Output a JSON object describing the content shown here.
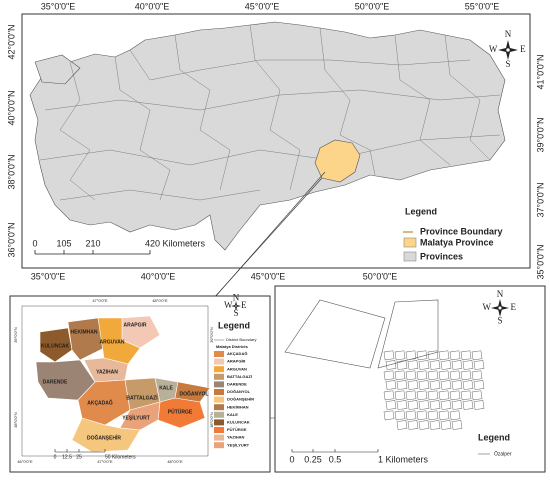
{
  "overview_map": {
    "top_lon": [
      "35°0'0\"E",
      "40°0'0\"E",
      "45°0'0\"E",
      "50°0'0\"E",
      "55°0'0\"E"
    ],
    "bottom_lon": [
      "35°0'0\"E",
      "40°0'0\"E",
      "45°0'0\"E",
      "50°0'0\"E"
    ],
    "left_lat": [
      "42°0'0\"N",
      "40°0'0\"N",
      "38°0'0\"N",
      "36°0'0\"N"
    ],
    "right_lat": [
      "41°0'0\"N",
      "39°0'0\"N",
      "37°0'0\"N",
      "35°0'0\"N"
    ],
    "scale": [
      "0",
      "105",
      "210",
      "420 Kilometers"
    ],
    "compass": [
      "N",
      "E",
      "S",
      "W"
    ],
    "legend": {
      "title": "Legend",
      "items": [
        "Province Boundary",
        "Malatya Province",
        "Provinces"
      ]
    }
  },
  "district_map": {
    "top_lon": [
      "47°0'0\"E",
      "48°0'0\"E"
    ],
    "bottom_lon": [
      "46°0'0\"E",
      "47°0'0\"E",
      "48°0'0\"E"
    ],
    "left_lat": [
      "39°0'0\"N",
      "38°0'0\"N"
    ],
    "right_lat": [
      "39°0'0\"N",
      "38°0'0\"N"
    ],
    "labels": [
      "ARAPGIR",
      "KULUNCAK",
      "HEKIMHAN",
      "ARGUVAN",
      "YAZIHAN",
      "DARENDE",
      "AKÇADAĞ",
      "BATTALGAZİ",
      "KALE",
      "DOĞANYOL",
      "PÜTÜRGE",
      "YEŞİLYURT",
      "DOĞANŞEHİR"
    ],
    "scale": [
      "0",
      "12.5",
      "25",
      "50 Kilometers"
    ],
    "compass": [
      "N",
      "E",
      "S",
      "W"
    ],
    "legend": {
      "title": "Legend",
      "boundary": "District Boundary",
      "subtitle": "Malatya Districts",
      "items": [
        "AKÇADAĞ",
        "ARAPGİR",
        "ARGUVAN",
        "BATTALGAZİ",
        "DARENDE",
        "DOĞANYOL",
        "DOĞANŞEHİR",
        "HEKİMHAN",
        "KALE",
        "KULUNCAK",
        "PÜTÜRGE",
        "YAZIHAN",
        "YEŞİLYURT"
      ]
    }
  },
  "town_map": {
    "scale": [
      "0",
      "0.25",
      "0.5",
      "1 Kilometers"
    ],
    "compass": [
      "N",
      "E",
      "S",
      "W"
    ],
    "legend": {
      "title": "Legend",
      "item": "Özalper"
    }
  }
}
